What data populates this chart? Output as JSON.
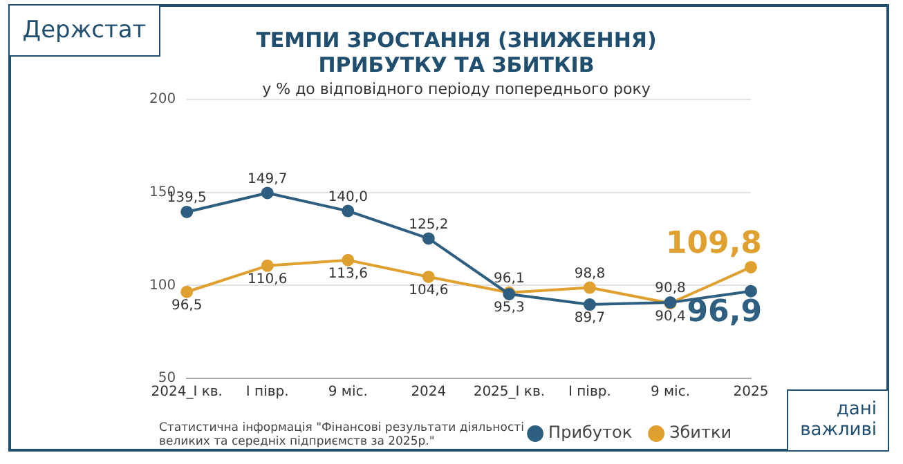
{
  "chart_data": {
    "type": "line",
    "title": "ТЕМПИ ЗРОСТАННЯ (ЗНИЖЕННЯ) ПРИБУТКУ ТА ЗБИТКІВ",
    "subtitle": "у % до відповідного періоду попереднього року",
    "categories": [
      "2024_І кв.",
      "І півр.",
      "9 міс.",
      "2024",
      "2025_І кв.",
      "І півр.",
      "9 міс.",
      "2025"
    ],
    "series": [
      {
        "name": "Прибуток",
        "color": "#2e5e80",
        "values": [
          139.5,
          149.7,
          140.0,
          125.2,
          95.3,
          89.7,
          90.8,
          96.9
        ],
        "value_labels": [
          "139,5",
          "149,7",
          "140,0",
          "125,2",
          "95,3",
          "89,7",
          "90,8",
          "96,9"
        ]
      },
      {
        "name": "Збитки",
        "color": "#e0a030",
        "values": [
          96.5,
          110.6,
          113.6,
          104.6,
          96.1,
          98.8,
          90.4,
          109.8
        ],
        "value_labels": [
          "96,5",
          "110,6",
          "113,6",
          "104,6",
          "96,1",
          "98,8",
          "90,4",
          "109,8"
        ]
      }
    ],
    "ylim": [
      50,
      200
    ],
    "yticks": [
      50,
      100,
      150,
      200
    ],
    "grid": "y",
    "legend": "bottom right",
    "marker": "circle",
    "line_style": "solid",
    "annotations": [
      "Держстат",
      "Статистична інформація \"Фінансові результати діяльності великих та середніх підприємств за 2025р.\"",
      "дані важливі"
    ]
  }
}
